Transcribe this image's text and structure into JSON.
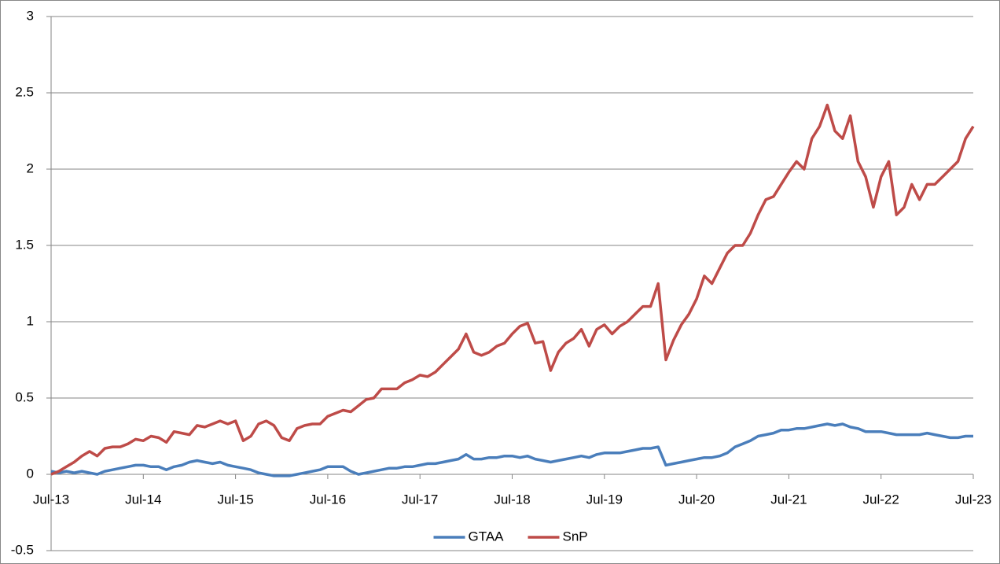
{
  "chart_data": {
    "type": "line",
    "x": [
      "Jul-13",
      "Aug-13",
      "Sep-13",
      "Oct-13",
      "Nov-13",
      "Dec-13",
      "Jan-14",
      "Feb-14",
      "Mar-14",
      "Apr-14",
      "May-14",
      "Jun-14",
      "Jul-14",
      "Aug-14",
      "Sep-14",
      "Oct-14",
      "Nov-14",
      "Dec-14",
      "Jan-15",
      "Feb-15",
      "Mar-15",
      "Apr-15",
      "May-15",
      "Jun-15",
      "Jul-15",
      "Aug-15",
      "Sep-15",
      "Oct-15",
      "Nov-15",
      "Dec-15",
      "Jan-16",
      "Feb-16",
      "Mar-16",
      "Apr-16",
      "May-16",
      "Jun-16",
      "Jul-16",
      "Aug-16",
      "Sep-16",
      "Oct-16",
      "Nov-16",
      "Dec-16",
      "Jan-17",
      "Feb-17",
      "Mar-17",
      "Apr-17",
      "May-17",
      "Jun-17",
      "Jul-17",
      "Aug-17",
      "Sep-17",
      "Oct-17",
      "Nov-17",
      "Dec-17",
      "Jan-18",
      "Feb-18",
      "Mar-18",
      "Apr-18",
      "May-18",
      "Jun-18",
      "Jul-18",
      "Aug-18",
      "Sep-18",
      "Oct-18",
      "Nov-18",
      "Dec-18",
      "Jan-19",
      "Feb-19",
      "Mar-19",
      "Apr-19",
      "May-19",
      "Jun-19",
      "Jul-19",
      "Aug-19",
      "Sep-19",
      "Oct-19",
      "Nov-19",
      "Dec-19",
      "Jan-20",
      "Feb-20",
      "Mar-20",
      "Apr-20",
      "May-20",
      "Jun-20",
      "Jul-20",
      "Aug-20",
      "Sep-20",
      "Oct-20",
      "Nov-20",
      "Dec-20",
      "Jan-21",
      "Feb-21",
      "Mar-21",
      "Apr-21",
      "May-21",
      "Jun-21",
      "Jul-21",
      "Aug-21",
      "Sep-21",
      "Oct-21",
      "Nov-21",
      "Dec-21",
      "Jan-22",
      "Feb-22",
      "Mar-22",
      "Apr-22",
      "May-22",
      "Jun-22",
      "Jul-22",
      "Aug-22",
      "Sep-22",
      "Oct-22",
      "Nov-22",
      "Dec-22",
      "Jan-23",
      "Feb-23",
      "Mar-23",
      "Apr-23",
      "May-23",
      "Jun-23",
      "Jul-23"
    ],
    "series": [
      {
        "name": "GTAA",
        "color": "#4a7ebb",
        "values": [
          0.02,
          0.01,
          0.02,
          0.01,
          0.02,
          0.01,
          0.0,
          0.02,
          0.03,
          0.04,
          0.05,
          0.06,
          0.06,
          0.05,
          0.05,
          0.03,
          0.05,
          0.06,
          0.08,
          0.09,
          0.08,
          0.07,
          0.08,
          0.06,
          0.05,
          0.04,
          0.03,
          0.01,
          0.0,
          -0.01,
          -0.01,
          -0.01,
          0.0,
          0.01,
          0.02,
          0.03,
          0.05,
          0.05,
          0.05,
          0.02,
          0.0,
          0.01,
          0.02,
          0.03,
          0.04,
          0.04,
          0.05,
          0.05,
          0.06,
          0.07,
          0.07,
          0.08,
          0.09,
          0.1,
          0.13,
          0.1,
          0.1,
          0.11,
          0.11,
          0.12,
          0.12,
          0.11,
          0.12,
          0.1,
          0.09,
          0.08,
          0.09,
          0.1,
          0.11,
          0.12,
          0.11,
          0.13,
          0.14,
          0.14,
          0.14,
          0.15,
          0.16,
          0.17,
          0.17,
          0.18,
          0.06,
          0.07,
          0.08,
          0.09,
          0.1,
          0.11,
          0.11,
          0.12,
          0.14,
          0.18,
          0.2,
          0.22,
          0.25,
          0.26,
          0.27,
          0.29,
          0.29,
          0.3,
          0.3,
          0.31,
          0.32,
          0.33,
          0.32,
          0.33,
          0.31,
          0.3,
          0.28,
          0.28,
          0.28,
          0.27,
          0.26,
          0.26,
          0.26,
          0.26,
          0.27,
          0.26,
          0.25,
          0.24,
          0.24,
          0.25,
          0.25
        ]
      },
      {
        "name": "SnP",
        "color": "#be4b48",
        "values": [
          0.0,
          0.02,
          0.05,
          0.08,
          0.12,
          0.15,
          0.12,
          0.17,
          0.18,
          0.18,
          0.2,
          0.23,
          0.22,
          0.25,
          0.24,
          0.21,
          0.28,
          0.27,
          0.26,
          0.32,
          0.31,
          0.33,
          0.35,
          0.33,
          0.35,
          0.22,
          0.25,
          0.33,
          0.35,
          0.32,
          0.24,
          0.22,
          0.3,
          0.32,
          0.33,
          0.33,
          0.38,
          0.4,
          0.42,
          0.41,
          0.45,
          0.49,
          0.5,
          0.56,
          0.56,
          0.56,
          0.6,
          0.62,
          0.65,
          0.64,
          0.67,
          0.72,
          0.77,
          0.82,
          0.92,
          0.8,
          0.78,
          0.8,
          0.84,
          0.86,
          0.92,
          0.97,
          0.99,
          0.86,
          0.87,
          0.68,
          0.8,
          0.86,
          0.89,
          0.95,
          0.84,
          0.95,
          0.98,
          0.92,
          0.97,
          1.0,
          1.05,
          1.1,
          1.1,
          1.25,
          0.75,
          0.88,
          0.98,
          1.05,
          1.15,
          1.3,
          1.25,
          1.35,
          1.45,
          1.5,
          1.5,
          1.58,
          1.7,
          1.8,
          1.82,
          1.9,
          1.98,
          2.05,
          2.0,
          2.2,
          2.28,
          2.42,
          2.25,
          2.2,
          2.35,
          2.05,
          1.95,
          1.75,
          1.95,
          2.05,
          1.7,
          1.75,
          1.9,
          1.8,
          1.9,
          1.9,
          1.95,
          2.0,
          2.05,
          2.2,
          2.28
        ]
      }
    ],
    "ylim": [
      -0.5,
      3
    ],
    "yticks": [
      -0.5,
      0,
      0.5,
      1,
      1.5,
      2,
      2.5,
      3
    ],
    "grid": true,
    "legend": "bottom"
  }
}
